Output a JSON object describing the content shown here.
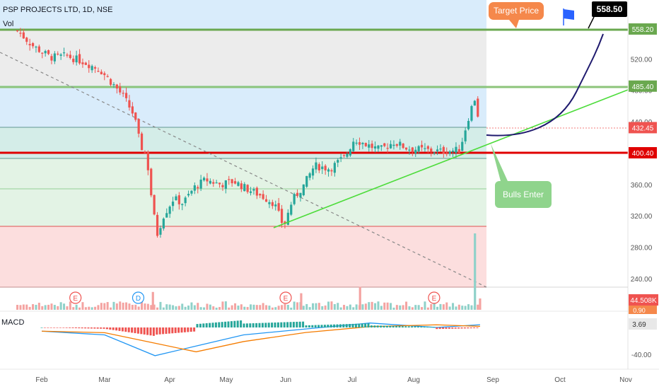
{
  "header": {
    "title": "PSP PROJECTS LTD, 1D, NSE",
    "vol_label": "Vol",
    "macd_label": "MACD"
  },
  "annotations": {
    "target_price": "Target Price",
    "bulls_enter": "Bulls Enter",
    "price_flag": "558.50"
  },
  "colors": {
    "up": "#26a69a",
    "down": "#ef5350",
    "green_line": "#6aa84f",
    "red_line": "#e00000",
    "trend": "#4ddc3b",
    "curve": "#1f1a6e",
    "zone_blue": "#d9ecfb",
    "zone_gray": "#ececec",
    "zone_green": "#e3f3e5",
    "zone_red": "#fcdede"
  },
  "chart_data": {
    "type": "candlestick",
    "title": "PSP PROJECTS LTD, 1D, NSE",
    "xlabel": "",
    "ylabel": "",
    "x_ticks": [
      "Feb",
      "Mar",
      "Apr",
      "May",
      "Jun",
      "Jul",
      "Aug",
      "Sep",
      "Oct",
      "Nov"
    ],
    "y_ticks": [
      240,
      280,
      320,
      360,
      400,
      440,
      480,
      520
    ],
    "ylim": [
      230,
      578
    ],
    "levels": [
      {
        "label": "558.20",
        "value": 558.2,
        "color": "#6aa84f"
      },
      {
        "label": "485.40",
        "value": 485.4,
        "color": "#6aa84f"
      },
      {
        "label": "432.45",
        "value": 432.45,
        "color": "#ef5350"
      },
      {
        "label": "400.40",
        "value": 400.4,
        "color": "#e00000"
      }
    ],
    "price_path": [
      {
        "date": "Jan 20",
        "price": 556
      },
      {
        "date": "Jan 28",
        "price": 536
      },
      {
        "date": "Feb 5",
        "price": 522
      },
      {
        "date": "Feb 12",
        "price": 524
      },
      {
        "date": "Feb 20",
        "price": 516
      },
      {
        "date": "Feb 27",
        "price": 506
      },
      {
        "date": "Mar 5",
        "price": 488
      },
      {
        "date": "Mar 10",
        "price": 472
      },
      {
        "date": "Mar 15",
        "price": 448
      },
      {
        "date": "Mar 18",
        "price": 410
      },
      {
        "date": "Mar 21",
        "price": 396
      },
      {
        "date": "Mar 24",
        "price": 328
      },
      {
        "date": "Mar 26",
        "price": 296
      },
      {
        "date": "Mar 29",
        "price": 320
      },
      {
        "date": "Apr 3",
        "price": 342
      },
      {
        "date": "Apr 8",
        "price": 336
      },
      {
        "date": "Apr 14",
        "price": 356
      },
      {
        "date": "Apr 20",
        "price": 366
      },
      {
        "date": "Apr 28",
        "price": 360
      },
      {
        "date": "May 5",
        "price": 364
      },
      {
        "date": "May 12",
        "price": 354
      },
      {
        "date": "May 19",
        "price": 346
      },
      {
        "date": "May 26",
        "price": 336
      },
      {
        "date": "May 31",
        "price": 306
      },
      {
        "date": "Jun 4",
        "price": 340
      },
      {
        "date": "Jun 9",
        "price": 358
      },
      {
        "date": "Jun 14",
        "price": 384
      },
      {
        "date": "Jun 21",
        "price": 380
      },
      {
        "date": "Jun 28",
        "price": 396
      },
      {
        "date": "Jul 2",
        "price": 418
      },
      {
        "date": "Jul 9",
        "price": 410
      },
      {
        "date": "Jul 15",
        "price": 404
      },
      {
        "date": "Jul 22",
        "price": 414
      },
      {
        "date": "Jul 29",
        "price": 406
      },
      {
        "date": "Aug 5",
        "price": 404
      },
      {
        "date": "Aug 12",
        "price": 402
      },
      {
        "date": "Aug 19",
        "price": 404
      },
      {
        "date": "Aug 23",
        "price": 452
      },
      {
        "date": "Aug 25",
        "price": 470
      },
      {
        "date": "Aug 27",
        "price": 432
      }
    ],
    "volume_bars_K": [
      {
        "date": "Mar 24",
        "value": 70
      },
      {
        "date": "Jun 8",
        "value": 65
      },
      {
        "date": "Jul 5",
        "value": 90
      },
      {
        "date": "Aug 25",
        "value": 300
      },
      {
        "date": "Aug 27",
        "value": 44.508
      }
    ],
    "volume_label": "44.508K",
    "events": [
      {
        "date": "Feb 16",
        "label": "E"
      },
      {
        "date": "Mar 17",
        "label": "D"
      },
      {
        "date": "Jun 1",
        "label": "E"
      },
      {
        "date": "Aug 9",
        "label": "E"
      }
    ],
    "macd": {
      "y_ticks": [
        -40
      ],
      "value_label": "3.69",
      "signal_label": "0.90",
      "macd_line": [
        {
          "date": "Feb 1",
          "value": -5
        },
        {
          "date": "Mar 1",
          "value": -10
        },
        {
          "date": "Mar 25",
          "value": -38
        },
        {
          "date": "Apr 15",
          "value": -25
        },
        {
          "date": "May 10",
          "value": -10
        },
        {
          "date": "Jun 10",
          "value": -2
        },
        {
          "date": "Jul 10",
          "value": 6
        },
        {
          "date": "Aug 10",
          "value": 0
        },
        {
          "date": "Aug 27",
          "value": 3.69
        }
      ]
    },
    "trendlines": [
      {
        "name": "support",
        "from": {
          "date": "May 31",
          "price": 303
        },
        "to": {
          "date": "Nov 10",
          "price": 485
        }
      },
      {
        "name": "downtrend",
        "from": {
          "date": "Jan 20",
          "price": 540
        },
        "to": {
          "date": "Aug 27",
          "price": 232
        }
      }
    ],
    "projection": [
      {
        "date": "Aug 27",
        "price": 415
      },
      {
        "date": "Sep 15",
        "price": 420
      },
      {
        "date": "Oct 5",
        "price": 450
      },
      {
        "date": "Oct 25",
        "price": 520
      },
      {
        "date": "Nov 1",
        "price": 550
      }
    ]
  }
}
